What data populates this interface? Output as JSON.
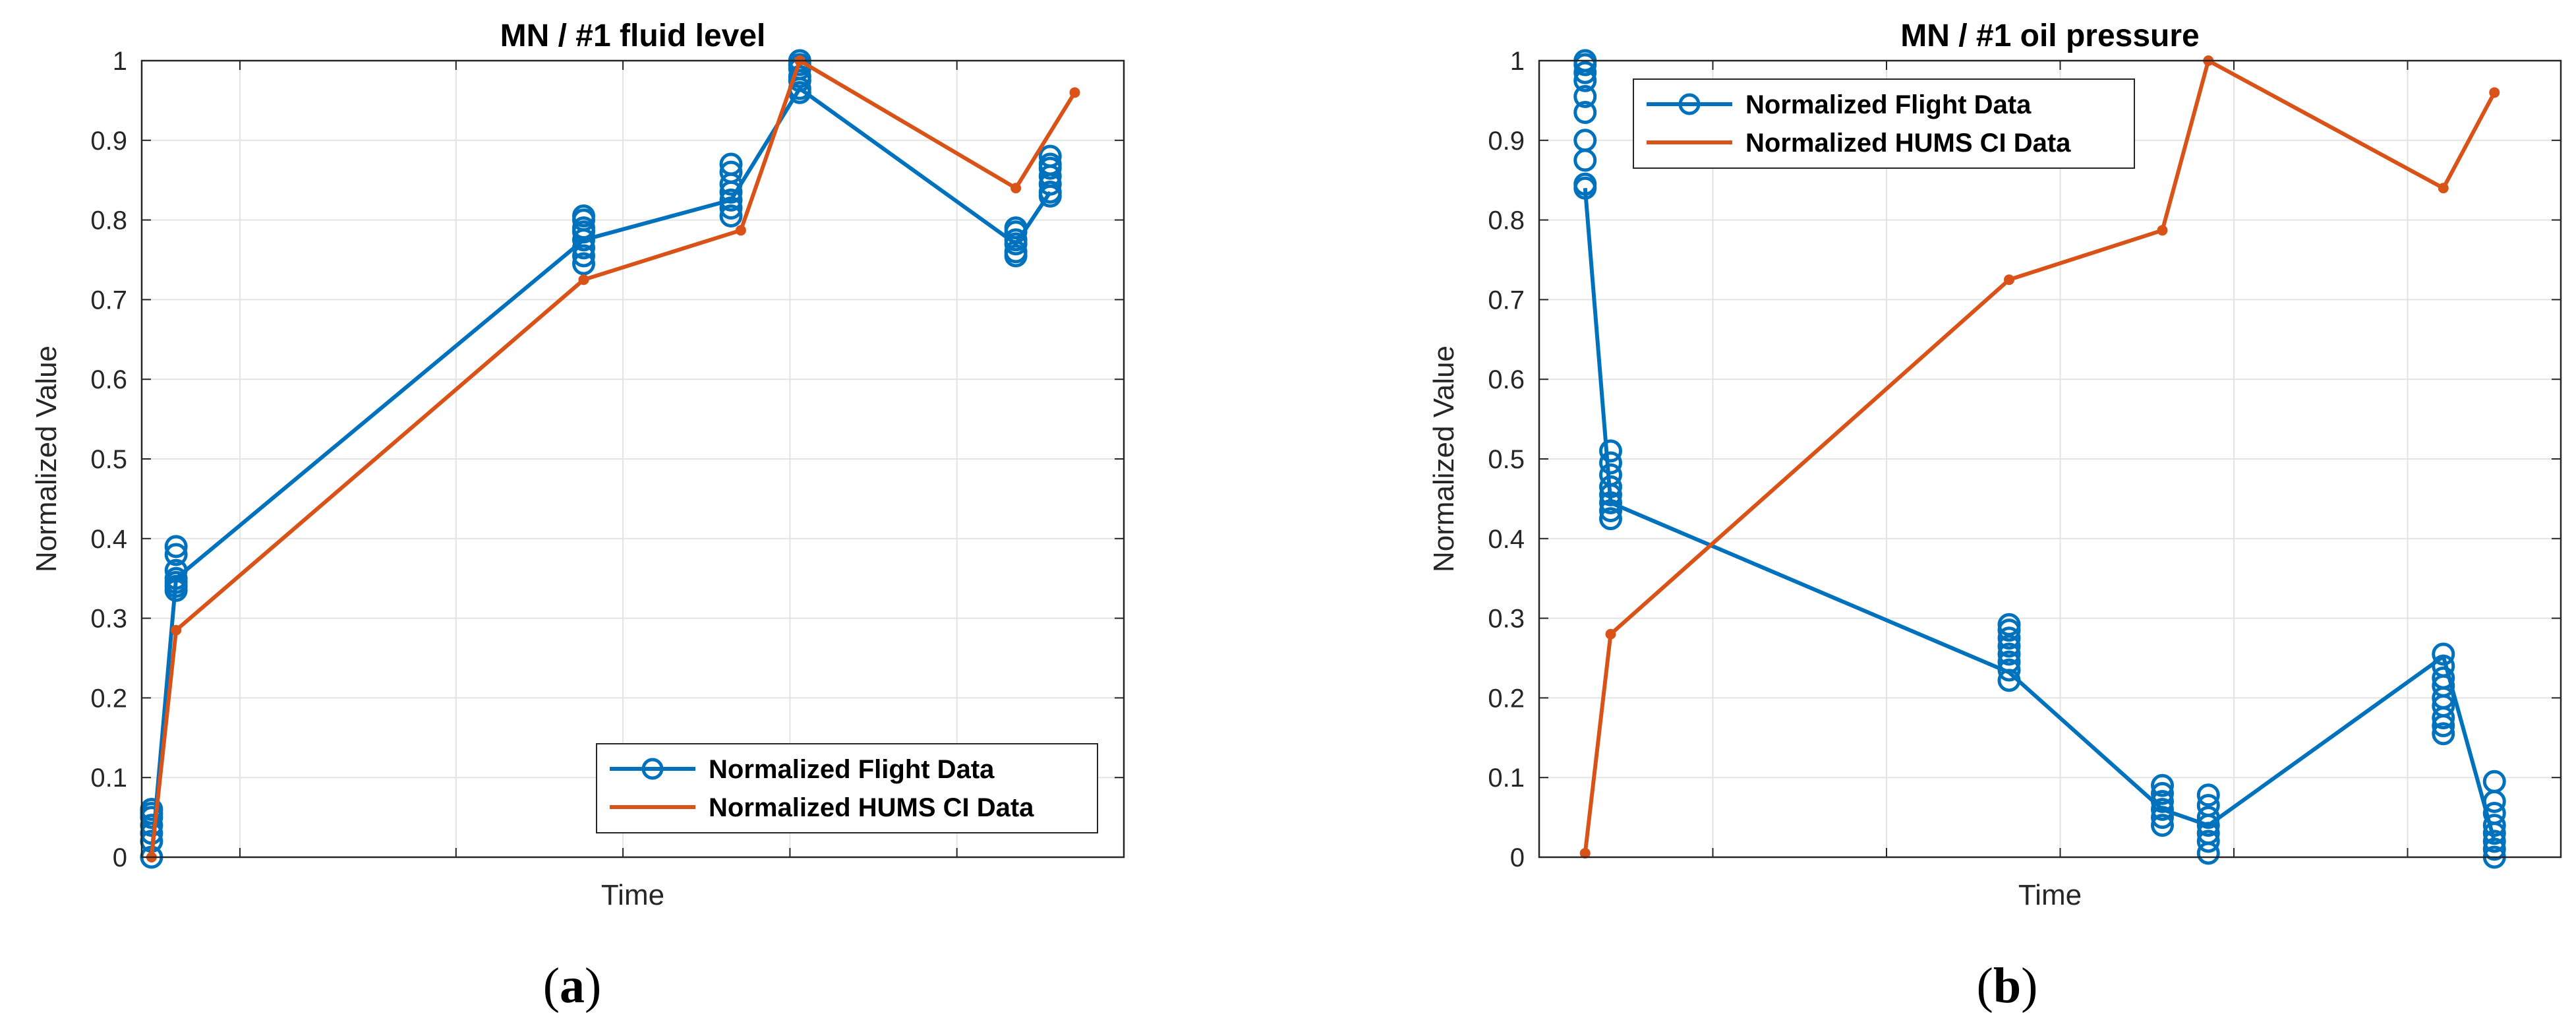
{
  "chart_data": [
    {
      "type": "line",
      "title": "MN / #1 fluid level",
      "xlabel": "Time",
      "ylabel": "Normalized Value",
      "ylim": [
        0,
        1
      ],
      "xlim": [
        0,
        100
      ],
      "yticks": [
        0,
        0.1,
        0.2,
        0.3,
        0.4,
        0.5,
        0.6,
        0.7,
        0.8,
        0.9,
        1
      ],
      "ytick_labels": [
        "0",
        "0.1",
        "0.2",
        "0.3",
        "0.4",
        "0.5",
        "0.6",
        "0.7",
        "0.8",
        "0.9",
        "1"
      ],
      "x_gridlines": [
        10,
        32,
        49,
        66,
        83
      ],
      "grid": true,
      "legend_position": "bottom-right",
      "panel_label": "a",
      "series": [
        {
          "name": "Normalized Flight Data",
          "color": "#0072BD",
          "marker": "circle",
          "x": [
            1,
            3.5,
            45,
            60,
            67,
            89,
            92.5
          ],
          "y": [
            0.0,
            0.35,
            0.775,
            0.825,
            0.965,
            0.77,
            0.835
          ],
          "scatter_x": [
            1,
            1,
            1,
            1,
            1,
            1,
            1,
            3.5,
            3.5,
            3.5,
            3.5,
            3.5,
            3.5,
            3.5,
            45,
            45,
            45,
            45,
            45,
            45,
            45,
            45,
            60,
            60,
            60,
            60,
            60,
            60,
            60,
            67,
            67,
            67,
            67,
            67,
            67,
            67,
            89,
            89,
            89,
            89,
            89,
            89,
            92.5,
            92.5,
            92.5,
            92.5,
            92.5,
            92.5,
            92.5
          ],
          "scatter_y": [
            0.0,
            0.02,
            0.03,
            0.04,
            0.05,
            0.055,
            0.06,
            0.335,
            0.34,
            0.345,
            0.35,
            0.36,
            0.38,
            0.39,
            0.745,
            0.755,
            0.765,
            0.775,
            0.785,
            0.79,
            0.8,
            0.805,
            0.805,
            0.815,
            0.825,
            0.835,
            0.845,
            0.86,
            0.87,
            0.96,
            0.965,
            0.975,
            0.98,
            0.99,
            0.995,
            1.0,
            0.755,
            0.76,
            0.77,
            0.775,
            0.785,
            0.79,
            0.83,
            0.835,
            0.845,
            0.855,
            0.865,
            0.87,
            0.88
          ]
        },
        {
          "name": "Normalized HUMS CI Data",
          "color": "#D95319",
          "marker": "dot",
          "x": [
            1,
            3.5,
            45,
            61,
            67,
            89,
            95
          ],
          "y": [
            0.0,
            0.285,
            0.725,
            0.787,
            1.0,
            0.84,
            0.96
          ]
        }
      ]
    },
    {
      "type": "line",
      "title": "MN / #1 oil pressure",
      "xlabel": "Time",
      "ylabel": "Normalized Value",
      "ylim": [
        0,
        1
      ],
      "xlim": [
        0,
        100
      ],
      "yticks": [
        0,
        0.1,
        0.2,
        0.3,
        0.4,
        0.5,
        0.6,
        0.7,
        0.8,
        0.9,
        1
      ],
      "ytick_labels": [
        "0",
        "0.1",
        "0.2",
        "0.3",
        "0.4",
        "0.5",
        "0.6",
        "0.7",
        "0.8",
        "0.9",
        "1"
      ],
      "x_gridlines": [
        17,
        34,
        51,
        68,
        85
      ],
      "grid": true,
      "legend_position": "top-left",
      "panel_label": "b",
      "series": [
        {
          "name": "Normalized Flight Data",
          "color": "#0072BD",
          "marker": "circle",
          "x": [
            4.5,
            7,
            46,
            61,
            65.5,
            88.5,
            93.5
          ],
          "y": [
            0.84,
            0.445,
            0.232,
            0.06,
            0.04,
            0.252,
            0.02
          ],
          "scatter_x": [
            4.5,
            4.5,
            4.5,
            4.5,
            4.5,
            4.5,
            4.5,
            4.5,
            4.5,
            4.5,
            7,
            7,
            7,
            7,
            7,
            7,
            7,
            7,
            46,
            46,
            46,
            46,
            46,
            46,
            46,
            46,
            61,
            61,
            61,
            61,
            61,
            61,
            65.5,
            65.5,
            65.5,
            65.5,
            65.5,
            65.5,
            65.5,
            88.5,
            88.5,
            88.5,
            88.5,
            88.5,
            88.5,
            88.5,
            88.5,
            88.5,
            93.5,
            93.5,
            93.5,
            93.5,
            93.5,
            93.5,
            93.5,
            93.5
          ],
          "scatter_y": [
            0.84,
            0.845,
            0.875,
            0.9,
            0.935,
            0.955,
            0.975,
            0.985,
            0.995,
            1.0,
            0.425,
            0.435,
            0.445,
            0.455,
            0.465,
            0.48,
            0.495,
            0.51,
            0.222,
            0.235,
            0.245,
            0.255,
            0.265,
            0.275,
            0.285,
            0.292,
            0.04,
            0.05,
            0.06,
            0.07,
            0.08,
            0.09,
            0.005,
            0.02,
            0.03,
            0.04,
            0.05,
            0.065,
            0.078,
            0.155,
            0.165,
            0.175,
            0.19,
            0.2,
            0.215,
            0.225,
            0.24,
            0.255,
            0.0,
            0.01,
            0.02,
            0.03,
            0.04,
            0.055,
            0.07,
            0.095
          ]
        },
        {
          "name": "Normalized HUMS CI Data",
          "color": "#D95319",
          "marker": "dot",
          "x": [
            4.5,
            7,
            46,
            61,
            65.5,
            88.5,
            93.5
          ],
          "y": [
            0.005,
            0.28,
            0.725,
            0.787,
            1.0,
            0.84,
            0.96
          ]
        }
      ]
    }
  ]
}
